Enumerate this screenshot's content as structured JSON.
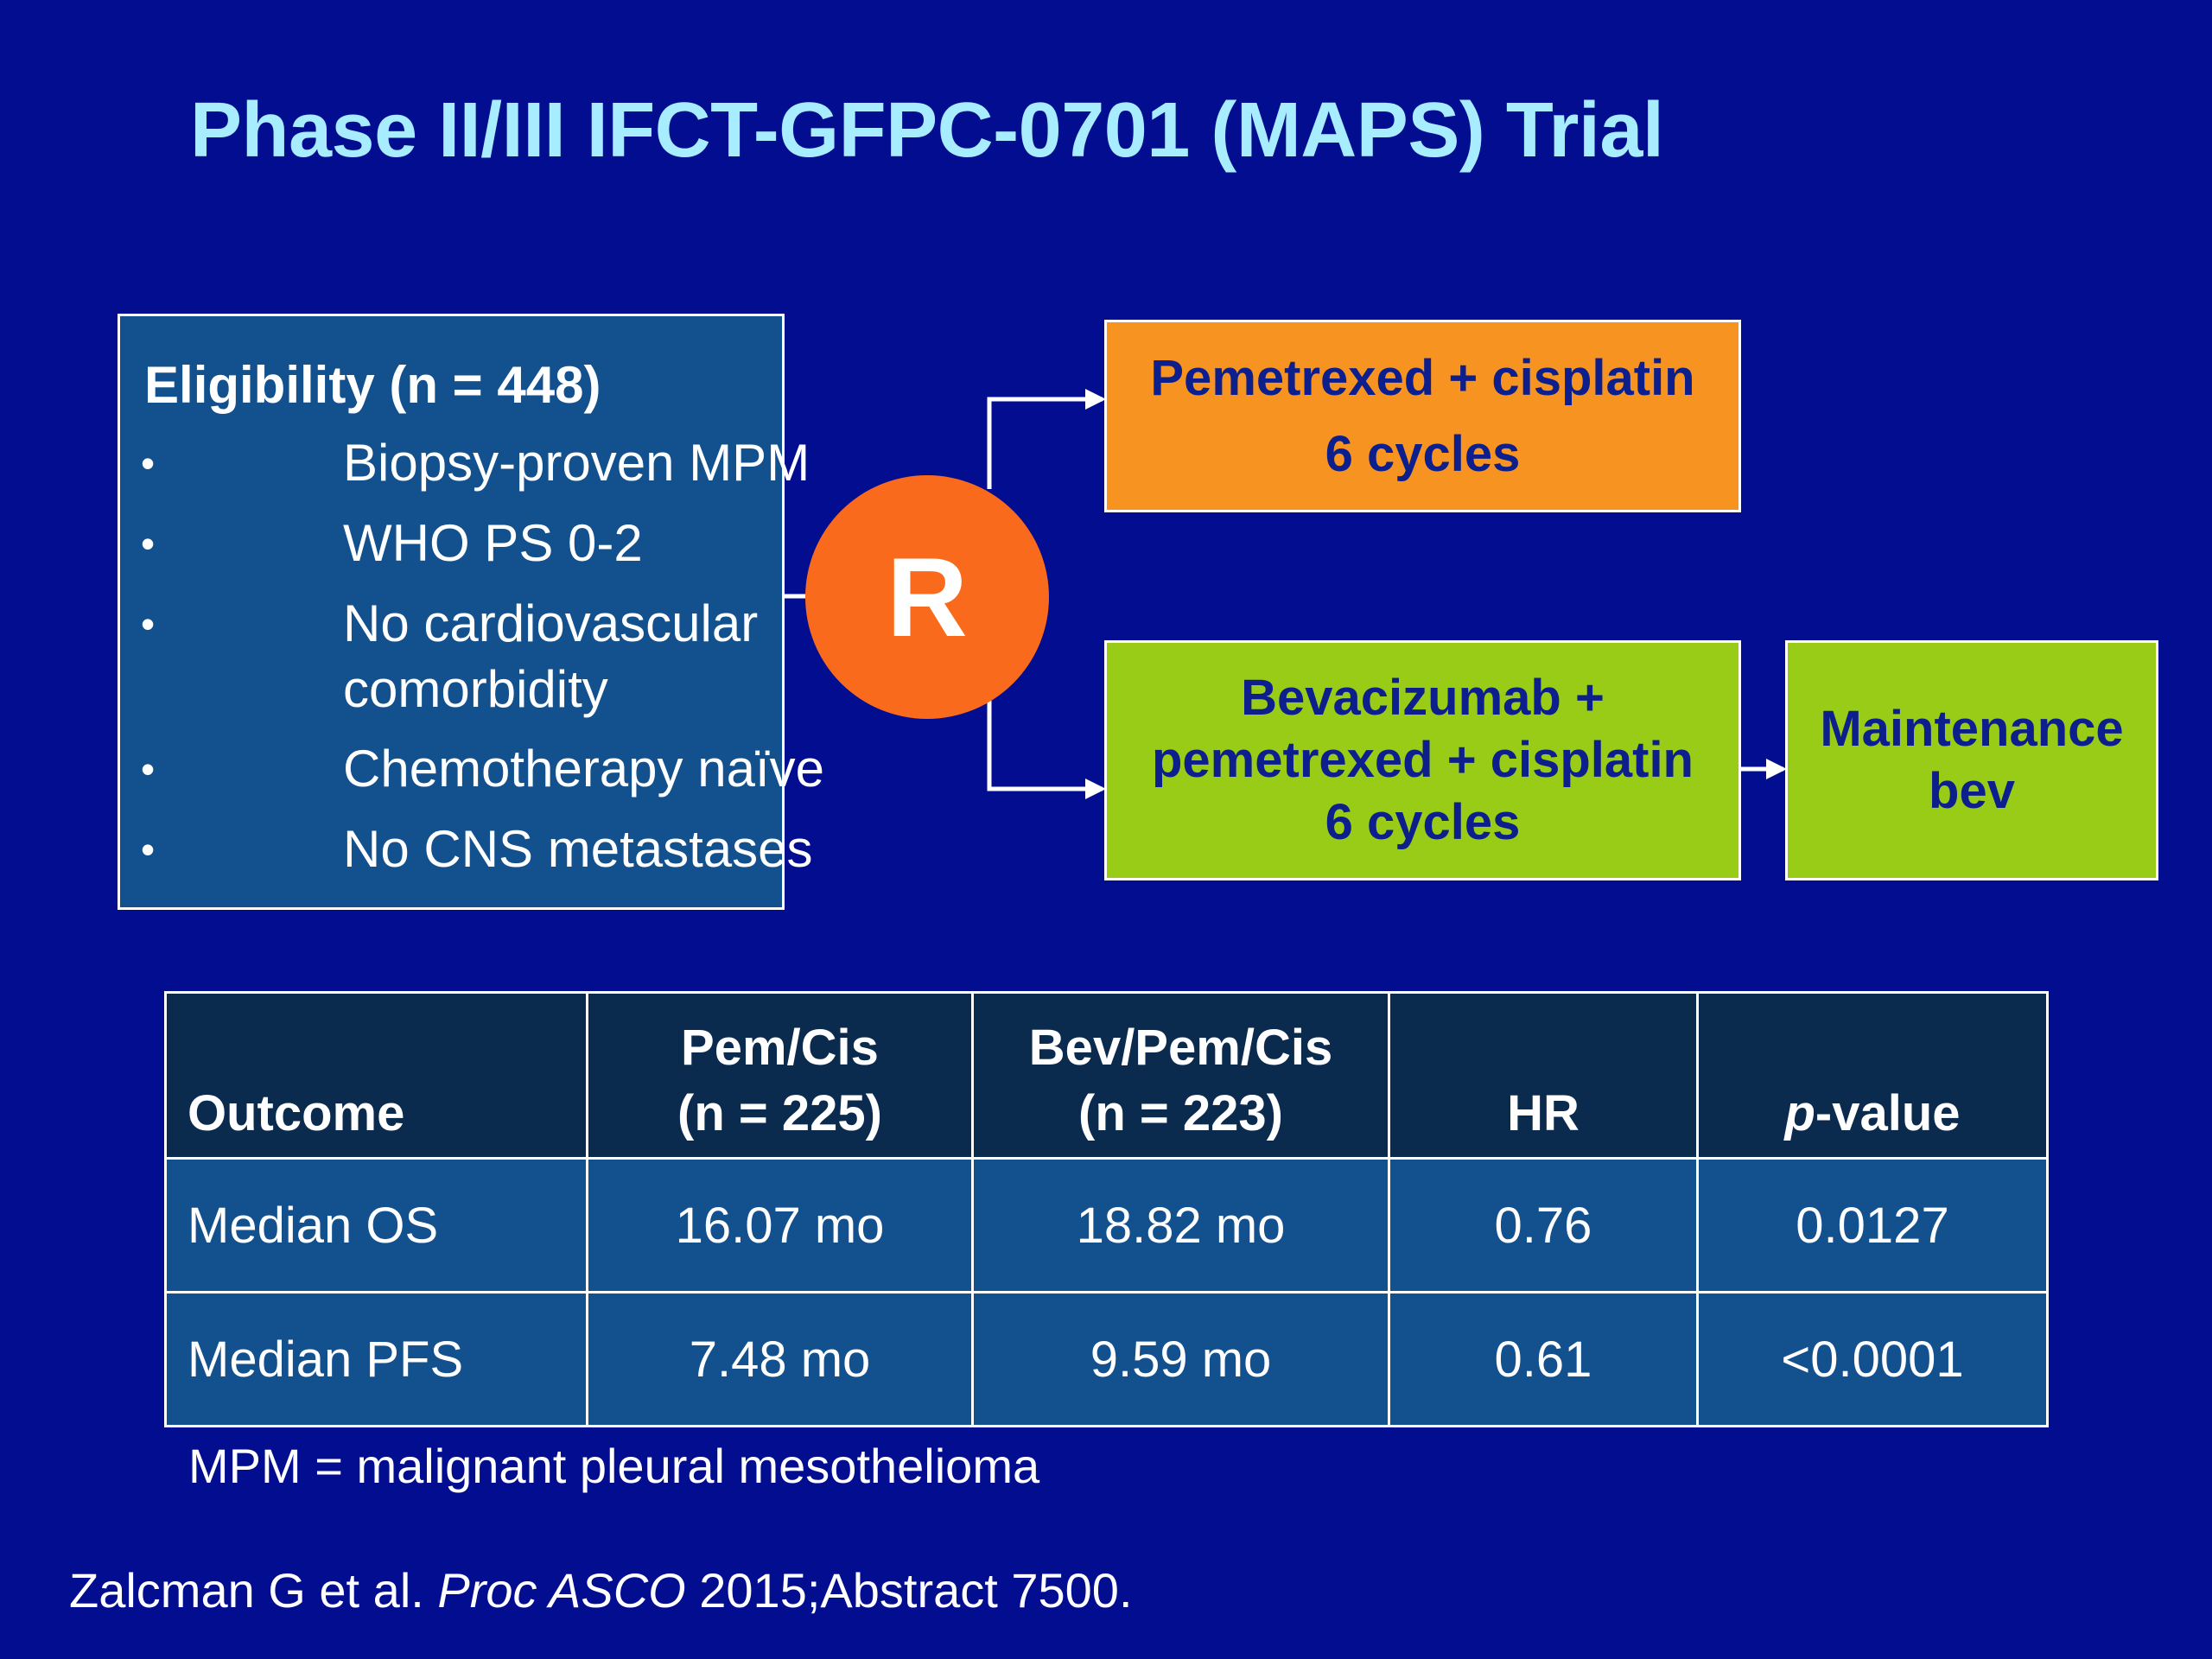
{
  "title": "Phase II/III IFCT-GFPC-0701 (MAPS) Trial",
  "eligibility": {
    "title": "Eligibility (n = 448)",
    "bullet": "•",
    "items": [
      {
        "line1": "Biopsy-proven MPM"
      },
      {
        "line1": "WHO PS 0-2"
      },
      {
        "line1": "No cardiovascular",
        "line2": "comorbidity"
      },
      {
        "line1": "Chemotherapy naïve"
      },
      {
        "line1": "No CNS metastases"
      }
    ]
  },
  "randomization_label": "R",
  "arms": {
    "arm1": {
      "line1": "Pemetrexed + cisplatin",
      "line2": "6 cycles"
    },
    "arm2": {
      "line1": "Bevacizumab +",
      "line2": "pemetrexed + cisplatin",
      "line3": "6 cycles"
    },
    "maintenance": {
      "line1": "Maintenance",
      "line2": "bev"
    }
  },
  "colors": {
    "background": "#020d8f",
    "title": "#a8ecff",
    "box_blue": "#12508e",
    "orange": "#f79421",
    "green": "#99cc16",
    "circle": "#fa6a1c",
    "table_header": "#0a2a4e"
  },
  "table": {
    "headers": {
      "outcome": "Outcome",
      "pemcis_1": "Pem/Cis",
      "pemcis_2": "(n = 225)",
      "bev_1": "Bev/Pem/Cis",
      "bev_2": "(n = 223)",
      "hr": "HR",
      "p_italic": "p",
      "p_rest": "-value"
    },
    "rows": [
      {
        "outcome": "Median OS",
        "pemcis": "16.07 mo",
        "bev": "18.82 mo",
        "hr": "0.76",
        "p": "0.0127"
      },
      {
        "outcome": "Median PFS",
        "pemcis": "7.48 mo",
        "bev": "9.59 mo",
        "hr": "0.61",
        "p": "<0.0001"
      }
    ]
  },
  "footnote": "MPM = malignant pleural mesothelioma",
  "citation": {
    "author": "Zalcman G et al. ",
    "journal": "Proc ASCO",
    "rest": " 2015;Abstract 7500."
  }
}
